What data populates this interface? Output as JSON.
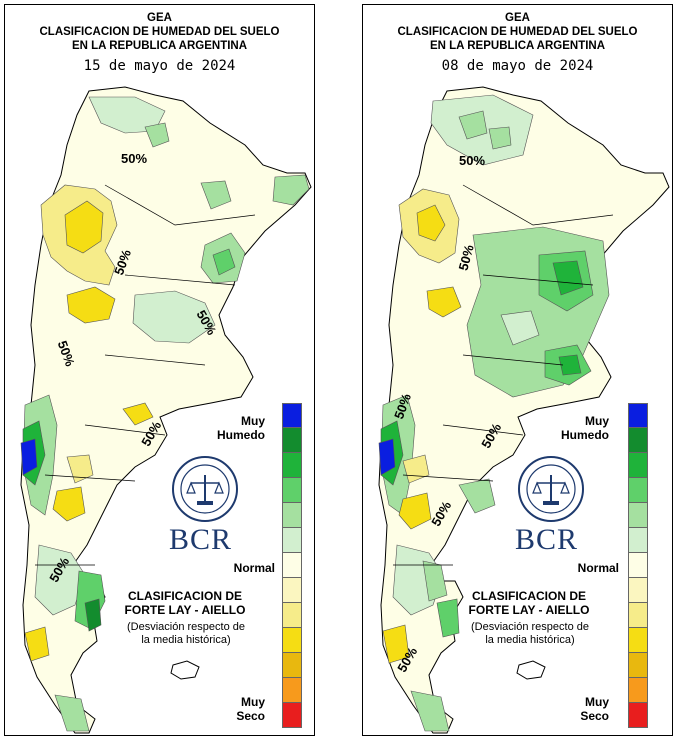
{
  "legend": {
    "colors": [
      "#0a1ee0",
      "#138c2e",
      "#1fb33a",
      "#5fd06a",
      "#a5e0a0",
      "#d2efcf",
      "#fefee6",
      "#fbf6c0",
      "#f6ec8a",
      "#f5dd14",
      "#e8b80f",
      "#f79a1c",
      "#e81e1e"
    ],
    "top_label": [
      "Muy",
      "Humedo"
    ],
    "normal_label": "Normal",
    "bottom_label": [
      "Muy",
      "Seco"
    ]
  },
  "logo": {
    "text": "BCR",
    "seal_name": "bolsa-de-comercio-de-rosario-seal"
  },
  "classification": {
    "line1": "CLASIFICACION DE",
    "line2": "FORTE LAY - AIELLO",
    "note1": "(Desviación respecto de",
    "note2": "la media histórica)"
  },
  "maps": [
    {
      "org": "GEA",
      "title1": "CLASIFICACION DE HUMEDAD DEL SUELO",
      "title2": "EN LA REPUBLICA ARGENTINA",
      "date": "15 de mayo de 2024",
      "contour_label": "50%"
    },
    {
      "org": "GEA",
      "title1": "CLASIFICACION DE HUMEDAD DEL SUELO",
      "title2": "EN LA REPUBLICA ARGENTINA",
      "date": "08 de mayo de 2024",
      "contour_label": "50%"
    }
  ]
}
